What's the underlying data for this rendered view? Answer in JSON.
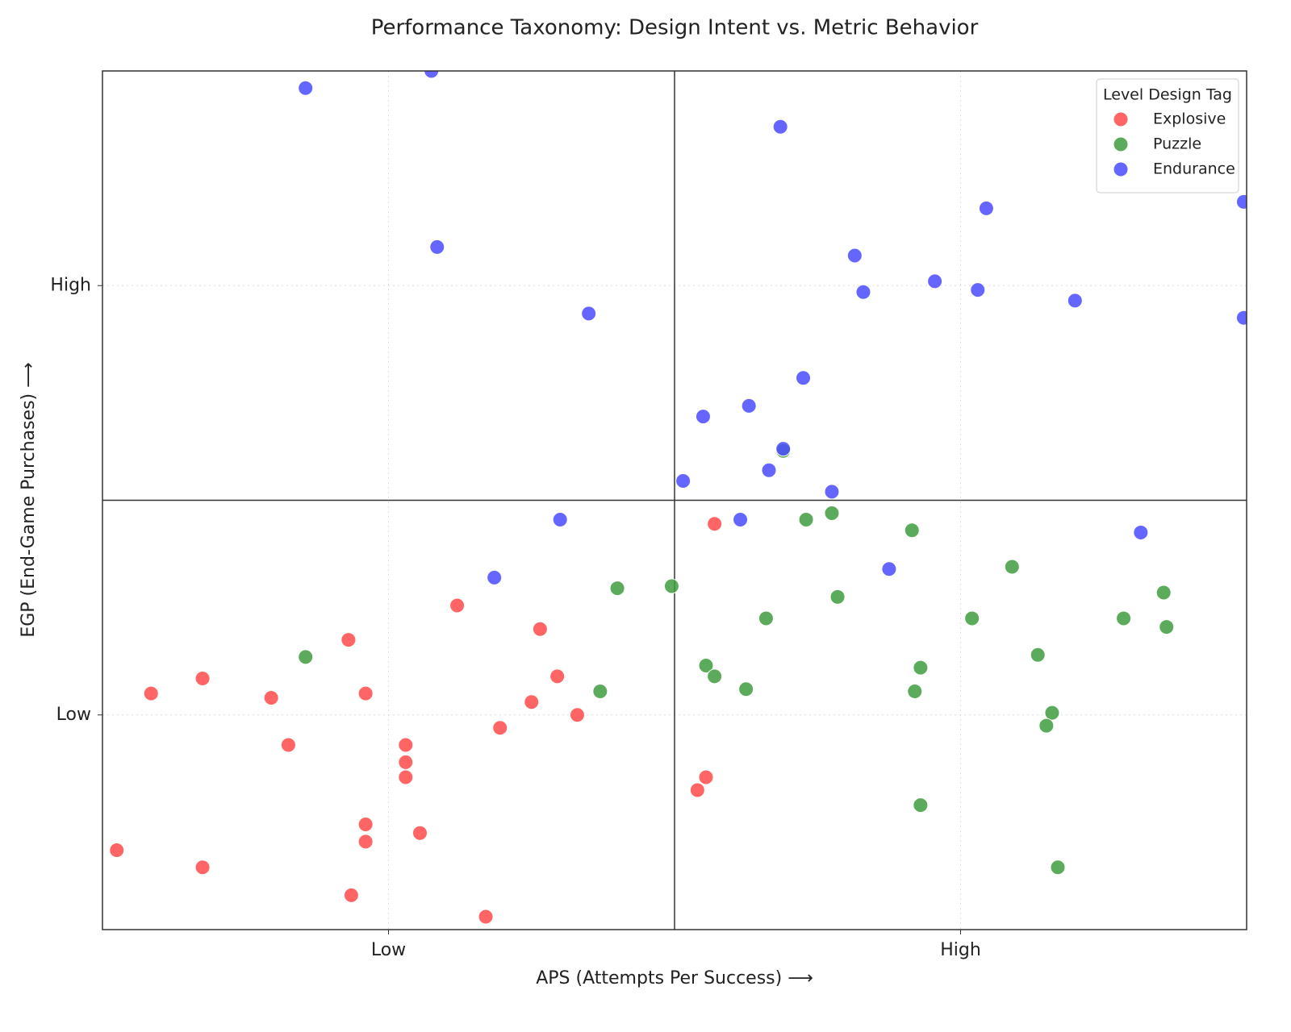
{
  "chart_data": {
    "type": "scatter",
    "title": "Performance Taxonomy: Design Intent vs. Metric Behavior",
    "x_label": "APS (Attempts Per Success) ⟶",
    "y_label": "EGP (End-Game Purchases) ⟶",
    "legend_title": "Level Design Tag",
    "legend": "upper right",
    "grid": true,
    "xlim": [
      -2,
      2
    ],
    "ylim": [
      -2,
      2
    ],
    "xticks": [
      {
        "value": -1,
        "label": "Low"
      },
      {
        "value": 1,
        "label": "High"
      }
    ],
    "yticks": [
      {
        "value": -1,
        "label": "Low"
      },
      {
        "value": 1,
        "label": "High"
      }
    ],
    "quadrant_lines": {
      "x": 0,
      "y": 0
    },
    "series": [
      {
        "name": "Explosive",
        "color": "#ff4a4a",
        "x": [
          0.14,
          -0.76,
          -1.14,
          -0.47,
          -1.65,
          -1.83,
          -1.41,
          -1.08,
          -0.41,
          -0.5,
          -0.34,
          -0.61,
          -1.35,
          -0.94,
          -0.94,
          -0.94,
          0.11,
          0.08,
          -1.08,
          -0.89,
          -1.08,
          -1.95,
          -1.65,
          -1.13,
          -0.66
        ],
        "values": [
          -0.11,
          -0.49,
          -0.65,
          -0.6,
          -0.83,
          -0.9,
          -0.92,
          -0.9,
          -0.82,
          -0.94,
          -1.0,
          -1.06,
          -1.14,
          -1.14,
          -1.22,
          -1.29,
          -1.29,
          -1.35,
          -1.51,
          -1.55,
          -1.59,
          -1.63,
          -1.71,
          -1.84,
          -1.94
        ]
      },
      {
        "name": "Puzzle",
        "color": "#3f9c3f",
        "x": [
          0.38,
          0.55,
          0.46,
          0.83,
          1.18,
          -0.2,
          -0.01,
          0.57,
          0.32,
          1.04,
          1.71,
          1.57,
          1.72,
          1.27,
          -1.29,
          0.11,
          0.14,
          0.86,
          0.25,
          0.84,
          -0.26,
          1.32,
          1.3,
          0.86,
          1.34
        ],
        "values": [
          0.23,
          -0.06,
          -0.09,
          -0.14,
          -0.31,
          -0.41,
          -0.4,
          -0.45,
          -0.55,
          -0.55,
          -0.43,
          -0.55,
          -0.59,
          -0.72,
          -0.73,
          -0.77,
          -0.82,
          -0.78,
          -0.88,
          -0.89,
          -0.89,
          -0.99,
          -1.05,
          -1.42,
          -1.71
        ]
      },
      {
        "name": "Endurance",
        "color": "#4a4aff",
        "x": [
          -1.29,
          -0.85,
          0.37,
          1.09,
          1.99,
          -0.83,
          0.63,
          0.91,
          1.06,
          0.66,
          1.4,
          -0.3,
          1.99,
          0.45,
          0.26,
          0.1,
          0.38,
          0.33,
          0.03,
          0.55,
          0.23,
          -0.4,
          1.63,
          -0.63,
          0.75
        ],
        "values": [
          1.92,
          2.0,
          1.74,
          1.36,
          1.39,
          1.18,
          1.14,
          1.02,
          0.98,
          0.97,
          0.93,
          0.87,
          0.85,
          0.57,
          0.44,
          0.39,
          0.24,
          0.14,
          0.09,
          0.04,
          -0.09,
          -0.09,
          -0.15,
          -0.36,
          -0.32
        ]
      }
    ]
  }
}
